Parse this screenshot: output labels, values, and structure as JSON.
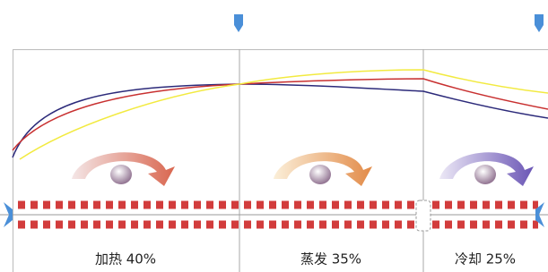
{
  "sections": [
    {
      "label": "加热 40%"
    },
    {
      "label": "蒸发 35%"
    },
    {
      "label": "冷却 25%"
    }
  ]
}
